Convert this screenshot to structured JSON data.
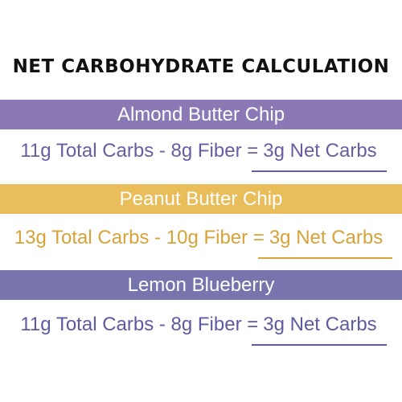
{
  "title": "NET CARBOHYDRATE CALCULATION",
  "colors": {
    "purple": "#8b79b5",
    "gold": "#e9bd5a",
    "blue": "#7774ae",
    "purple_text": "#6b5ca0",
    "gold_text": "#d6a338",
    "blue_text": "#5e5ba0"
  },
  "rows": [
    {
      "name": "Almond Butter Chip",
      "equation": "11g Total Carbs - 8g Fiber =",
      "result": "3g Net Carbs"
    },
    {
      "name": "Peanut Butter Chip",
      "equation": "13g Total Carbs - 10g Fiber =",
      "result": "3g Net Carbs"
    },
    {
      "name": "Lemon Blueberry",
      "equation": "11g Total Carbs - 8g Fiber =",
      "result": "3g Net Carbs"
    }
  ]
}
